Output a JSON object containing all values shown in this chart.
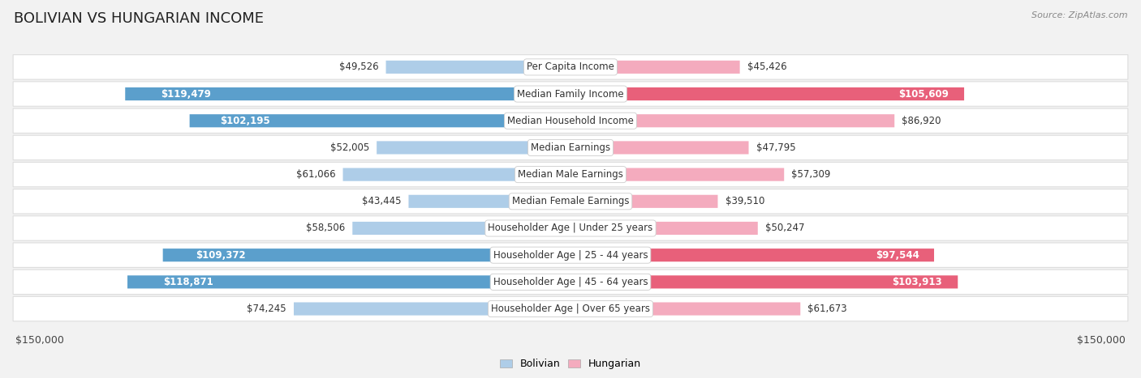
{
  "title": "BOLIVIAN VS HUNGARIAN INCOME",
  "source": "Source: ZipAtlas.com",
  "max_value": 150000,
  "categories": [
    "Per Capita Income",
    "Median Family Income",
    "Median Household Income",
    "Median Earnings",
    "Median Male Earnings",
    "Median Female Earnings",
    "Householder Age | Under 25 years",
    "Householder Age | 25 - 44 years",
    "Householder Age | 45 - 64 years",
    "Householder Age | Over 65 years"
  ],
  "bolivian_values": [
    49526,
    119479,
    102195,
    52005,
    61066,
    43445,
    58506,
    109372,
    118871,
    74245
  ],
  "hungarian_values": [
    45426,
    105609,
    86920,
    47795,
    57309,
    39510,
    50247,
    97544,
    103913,
    61673
  ],
  "bolivian_light": "#AECDE8",
  "bolivian_dark": "#5B9FCC",
  "hungarian_light": "#F4ABBE",
  "hungarian_dark": "#E8607A",
  "background_color": "#F2F2F2",
  "row_bg_color": "#FFFFFF",
  "row_border_color": "#DDDDDD",
  "label_bg_color": "#FFFFFF",
  "title_fontsize": 13,
  "label_fontsize": 8.5,
  "value_fontsize": 8.5,
  "legend_fontsize": 9,
  "source_fontsize": 8,
  "large_threshold": 0.62
}
